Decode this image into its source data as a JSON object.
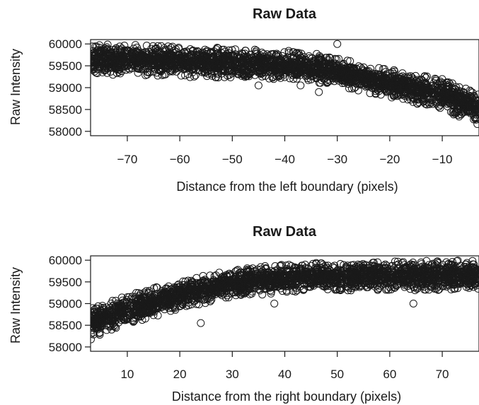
{
  "chart_data": [
    {
      "type": "scatter",
      "title": "Raw Data",
      "xlabel": "Distance from the left boundary (pixels)",
      "ylabel": "Raw Intensity",
      "xlim": [
        -77,
        -3
      ],
      "ylim": [
        57900,
        60100
      ],
      "xticks": [
        -70,
        -60,
        -50,
        -40,
        -30,
        -20,
        -10
      ],
      "yticks": [
        58000,
        58500,
        59000,
        59500,
        60000
      ],
      "grid": false,
      "trend": {
        "x": [
          -77,
          -70,
          -60,
          -50,
          -40,
          -35,
          -30,
          -20,
          -10,
          -3
        ],
        "center": [
          59650,
          59640,
          59600,
          59550,
          59520,
          59470,
          59350,
          59100,
          58850,
          58500
        ],
        "half_width": [
          350,
          350,
          350,
          350,
          330,
          330,
          320,
          330,
          350,
          400
        ]
      },
      "outliers": [
        {
          "x": -33.5,
          "y": 58900
        },
        {
          "x": -37,
          "y": 59050
        },
        {
          "x": -45,
          "y": 59050
        },
        {
          "x": -30,
          "y": 60000
        }
      ]
    },
    {
      "type": "scatter",
      "title": "Raw Data",
      "xlabel": "Distance from the right boundary (pixels)",
      "ylabel": "Raw Intensity",
      "xlim": [
        3,
        77
      ],
      "ylim": [
        57900,
        60100
      ],
      "xticks": [
        10,
        20,
        30,
        40,
        50,
        60,
        70
      ],
      "yticks": [
        58000,
        58500,
        59000,
        59500,
        60000
      ],
      "grid": false,
      "trend": {
        "x": [
          3,
          5,
          10,
          20,
          30,
          40,
          50,
          60,
          70,
          77
        ],
        "center": [
          58500,
          58650,
          58850,
          59200,
          59450,
          59600,
          59620,
          59640,
          59650,
          59650
        ],
        "half_width": [
          400,
          380,
          350,
          330,
          330,
          330,
          330,
          330,
          350,
          350
        ]
      },
      "outliers": [
        {
          "x": 64.5,
          "y": 59000
        },
        {
          "x": 38,
          "y": 59000
        },
        {
          "x": 24,
          "y": 58550
        }
      ]
    }
  ]
}
